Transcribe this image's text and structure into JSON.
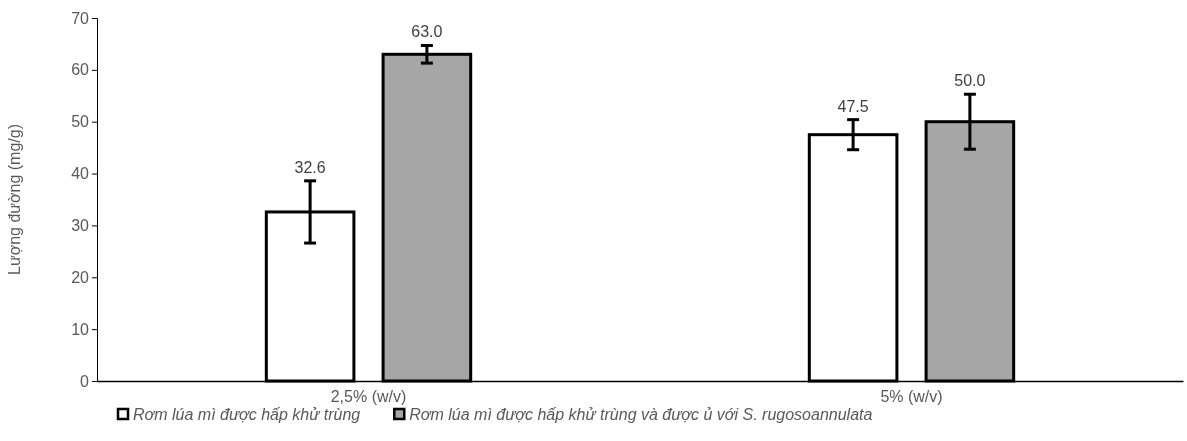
{
  "chart_data": {
    "type": "bar",
    "ylabel": "Lượng đường (mg/g)",
    "categories": [
      "2,5% (w/v)",
      "5% (w/v)"
    ],
    "series": [
      {
        "name": "Rơm lúa mì được hấp khử trùng",
        "color": "#ffffff",
        "values": [
          32.6,
          47.5
        ],
        "errors": [
          6.0,
          2.9
        ],
        "value_labels": [
          "32.6",
          "47.5"
        ]
      },
      {
        "name": "Rơm lúa mì được hấp khử trùng và được ủ với S. rugosoannulata",
        "color": "#a6a6a6",
        "values": [
          63.0,
          50.0
        ],
        "errors": [
          1.7,
          5.3
        ],
        "value_labels": [
          "63.0",
          "50.0"
        ]
      }
    ],
    "ylim": [
      0,
      70
    ],
    "yticks": [
      0,
      10,
      20,
      30,
      40,
      50,
      60,
      70
    ],
    "grid": false,
    "legend": "bottom left"
  }
}
